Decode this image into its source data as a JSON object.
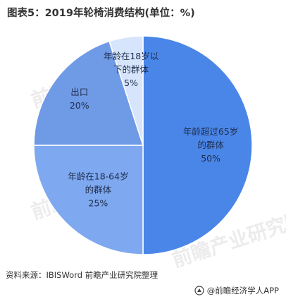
{
  "header": {
    "title": "图表5：2019年轮椅消费结构(单位：%)"
  },
  "footer": {
    "source": "资料来源：IBISWord 前瞻产业研究院整理",
    "brand": "@前瞻经济学人APP"
  },
  "watermark": {
    "text": "前瞻产业研究院"
  },
  "colors": {
    "slice_1": "#4a86e8",
    "slice_2": "#7ea8ef",
    "slice_3": "#6f9ae6",
    "slice_4": "#d6e5fb",
    "label_dark": "#1f2d4d",
    "text": "#333333"
  },
  "chart_data": {
    "type": "pie",
    "title": "图表5：2019年轮椅消费结构(单位：%)",
    "slices": [
      {
        "label_lines": [
          "年龄超过65岁",
          "的群体"
        ],
        "value": 50,
        "value_label": "50%"
      },
      {
        "label_lines": [
          "年龄在18-64岁",
          "的群体"
        ],
        "value": 25,
        "value_label": "25%"
      },
      {
        "label_lines": [
          "出口"
        ],
        "value": 20,
        "value_label": "20%"
      },
      {
        "label_lines": [
          "年龄在18岁以",
          "下的群体"
        ],
        "value": 5,
        "value_label": "5%"
      }
    ]
  }
}
